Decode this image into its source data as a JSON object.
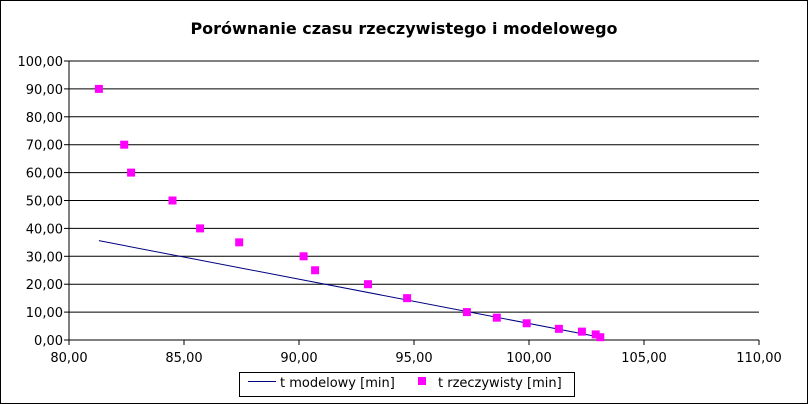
{
  "chart_data": {
    "type": "scatter",
    "title": "Porównanie czasu rzeczywistego i modelowego",
    "xlabel": "",
    "ylabel": "",
    "xlim": [
      80,
      110
    ],
    "ylim": [
      0,
      100
    ],
    "x_ticks": [
      "80,00",
      "85,00",
      "90,00",
      "95,00",
      "100,00",
      "105,00",
      "110,00"
    ],
    "y_ticks": [
      "0,00",
      "10,00",
      "20,00",
      "30,00",
      "40,00",
      "50,00",
      "60,00",
      "70,00",
      "80,00",
      "90,00",
      "100,00"
    ],
    "grid": "horizontal",
    "legend_position": "bottom",
    "series": [
      {
        "name": "t modelowy [min]",
        "kind": "line",
        "color": "#000080",
        "points": [
          [
            81.3,
            35.6
          ],
          [
            103.1,
            1.0
          ]
        ]
      },
      {
        "name": "t rzeczywisty [min]",
        "kind": "scatter",
        "color": "#ff00ff",
        "points": [
          [
            81.3,
            90
          ],
          [
            82.4,
            70
          ],
          [
            82.7,
            60
          ],
          [
            84.5,
            50
          ],
          [
            85.7,
            40
          ],
          [
            87.4,
            35
          ],
          [
            90.2,
            30
          ],
          [
            90.7,
            25
          ],
          [
            93.0,
            20
          ],
          [
            94.7,
            15
          ],
          [
            97.3,
            10
          ],
          [
            98.6,
            8
          ],
          [
            99.9,
            6
          ],
          [
            101.3,
            4
          ],
          [
            102.3,
            3
          ],
          [
            102.9,
            2
          ],
          [
            103.1,
            1
          ]
        ]
      }
    ]
  }
}
